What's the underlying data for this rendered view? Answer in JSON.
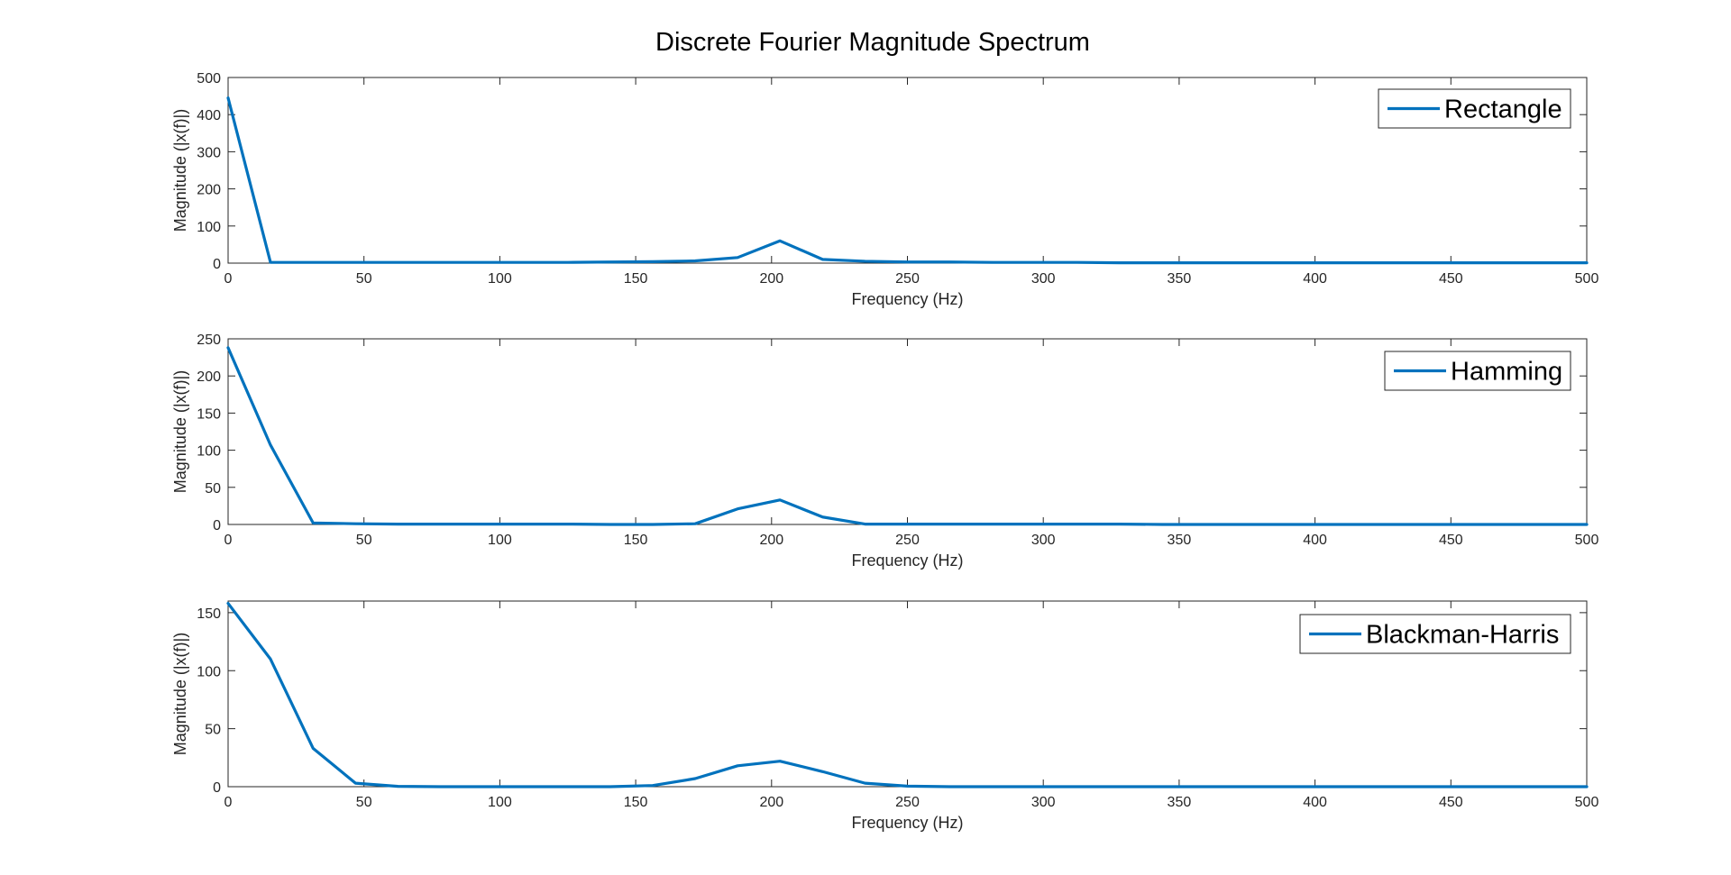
{
  "figure_title": "Discrete Fourier Magnitude Spectrum",
  "chart_data": [
    {
      "type": "line",
      "xlabel": "Frequency (Hz)",
      "ylabel": "Magnitude (|x(f)|)",
      "xlim": [
        0,
        500
      ],
      "ylim": [
        0,
        500
      ],
      "xticks": [
        0,
        50,
        100,
        150,
        200,
        250,
        300,
        350,
        400,
        450,
        500
      ],
      "yticks": [
        0,
        100,
        200,
        300,
        400,
        500
      ],
      "grid": false,
      "legend_position": "top-right",
      "color": "#0072BD",
      "series": [
        {
          "name": "Rectangle",
          "x": [
            0,
            15.6,
            31.3,
            46.9,
            62.5,
            78.1,
            93.8,
            109.4,
            125,
            140.6,
            156.3,
            171.9,
            187.5,
            203.1,
            218.8,
            234.4,
            250,
            265.6,
            281.3,
            296.9,
            312.5,
            328.1,
            343.8,
            359.4,
            375,
            390.6,
            406.3,
            421.9,
            437.5,
            453.1,
            468.8,
            484.4,
            500
          ],
          "y": [
            445,
            2,
            2,
            2,
            2,
            2,
            2,
            2,
            2,
            3,
            4,
            6,
            15,
            60,
            10,
            5,
            3,
            3,
            2,
            2,
            2,
            1,
            1,
            1,
            1,
            1,
            1,
            1,
            1,
            1,
            1,
            1,
            1
          ]
        }
      ]
    },
    {
      "type": "line",
      "xlabel": "Frequency (Hz)",
      "ylabel": "Magnitude (|x(f)|)",
      "xlim": [
        0,
        500
      ],
      "ylim": [
        0,
        250
      ],
      "xticks": [
        0,
        50,
        100,
        150,
        200,
        250,
        300,
        350,
        400,
        450,
        500
      ],
      "yticks": [
        0,
        50,
        100,
        150,
        200,
        250
      ],
      "grid": false,
      "legend_position": "top-right",
      "color": "#0072BD",
      "series": [
        {
          "name": "Hamming",
          "x": [
            0,
            15.6,
            31.3,
            46.9,
            62.5,
            78.1,
            93.8,
            109.4,
            125,
            140.6,
            156.3,
            171.9,
            187.5,
            203.1,
            218.8,
            234.4,
            250,
            265.6,
            281.3,
            296.9,
            312.5,
            328.1,
            343.8,
            359.4,
            375,
            390.6,
            406.3,
            421.9,
            437.5,
            453.1,
            468.8,
            484.4,
            500
          ],
          "y": [
            238,
            107,
            2,
            1,
            0.5,
            0.5,
            0.5,
            0.5,
            0.5,
            0,
            0,
            1,
            21,
            33,
            10,
            0.5,
            0.5,
            0.5,
            0.5,
            0.5,
            0.5,
            0.5,
            0,
            0,
            0,
            0,
            0,
            0,
            0,
            0,
            0,
            0,
            0
          ]
        }
      ]
    },
    {
      "type": "line",
      "xlabel": "Frequency (Hz)",
      "ylabel": "Magnitude (|x(f)|)",
      "xlim": [
        0,
        500
      ],
      "ylim": [
        0,
        160
      ],
      "xticks": [
        0,
        50,
        100,
        150,
        200,
        250,
        300,
        350,
        400,
        450,
        500
      ],
      "yticks": [
        0,
        50,
        100,
        150
      ],
      "grid": false,
      "legend_position": "top-right",
      "color": "#0072BD",
      "series": [
        {
          "name": "Blackman-Harris",
          "x": [
            0,
            15.6,
            31.3,
            46.9,
            62.5,
            78.1,
            93.8,
            109.4,
            125,
            140.6,
            156.3,
            171.9,
            187.5,
            203.1,
            218.8,
            234.4,
            250,
            265.6,
            281.3,
            296.9,
            312.5,
            328.1,
            343.8,
            359.4,
            375,
            390.6,
            406.3,
            421.9,
            437.5,
            453.1,
            468.8,
            484.4,
            500
          ],
          "y": [
            158,
            110,
            33,
            3,
            0.3,
            0,
            0,
            0,
            0,
            0,
            1,
            7,
            18,
            22,
            13,
            3,
            0.5,
            0,
            0,
            0,
            0,
            0,
            0,
            0,
            0,
            0,
            0,
            0,
            0,
            0,
            0,
            0,
            0
          ]
        }
      ]
    }
  ]
}
